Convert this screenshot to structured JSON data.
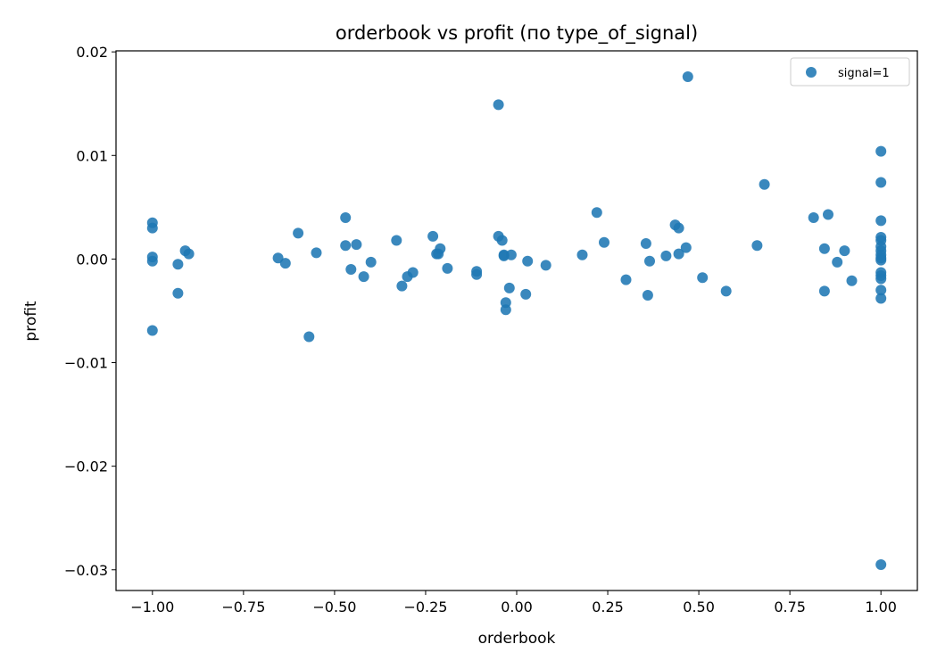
{
  "chart_data": {
    "type": "scatter",
    "title": "orderbook vs profit (по type_of_signal)",
    "xlabel": "orderbook",
    "ylabel": "profit",
    "xlim": [
      -1.1,
      1.1
    ],
    "ylim": [
      -0.032,
      0.0201
    ],
    "x_ticks": [
      -1.0,
      -0.75,
      -0.5,
      -0.25,
      0.0,
      0.25,
      0.5,
      0.75,
      1.0
    ],
    "x_tick_labels": [
      "−1.00",
      "−0.75",
      "−0.50",
      "−0.25",
      "0.00",
      "0.25",
      "0.50",
      "0.75",
      "1.00"
    ],
    "y_ticks": [
      -0.03,
      -0.02,
      -0.01,
      0.0,
      0.01,
      0.02
    ],
    "y_tick_labels": [
      "−0.03",
      "−0.02",
      "−0.01",
      "0.00",
      "0.01",
      "0.02"
    ],
    "grid": false,
    "legend_position": "top-right",
    "color": "#1f77b4",
    "series": [
      {
        "name": "signal=1",
        "points": [
          [
            -1.0,
            0.0035
          ],
          [
            -1.0,
            0.003
          ],
          [
            -1.0,
            0.0002
          ],
          [
            -1.0,
            -0.0002
          ],
          [
            -1.0,
            -0.0069
          ],
          [
            -0.93,
            -0.0005
          ],
          [
            -0.93,
            -0.0033
          ],
          [
            -0.91,
            0.0008
          ],
          [
            -0.9,
            0.0005
          ],
          [
            -0.655,
            0.0001
          ],
          [
            -0.635,
            -0.0004
          ],
          [
            -0.6,
            0.0025
          ],
          [
            -0.57,
            -0.0075
          ],
          [
            -0.55,
            0.0006
          ],
          [
            -0.47,
            0.004
          ],
          [
            -0.47,
            0.0013
          ],
          [
            -0.455,
            -0.001
          ],
          [
            -0.44,
            0.0014
          ],
          [
            -0.42,
            -0.0017
          ],
          [
            -0.4,
            -0.0003
          ],
          [
            -0.33,
            0.0018
          ],
          [
            -0.315,
            -0.0026
          ],
          [
            -0.3,
            -0.0017
          ],
          [
            -0.285,
            -0.0013
          ],
          [
            -0.23,
            0.0022
          ],
          [
            -0.22,
            0.0005
          ],
          [
            -0.215,
            0.0005
          ],
          [
            -0.21,
            0.001
          ],
          [
            -0.19,
            -0.0009
          ],
          [
            -0.11,
            -0.0012
          ],
          [
            -0.11,
            -0.0015
          ],
          [
            -0.05,
            0.0149
          ],
          [
            -0.05,
            0.0022
          ],
          [
            -0.04,
            0.0018
          ],
          [
            -0.035,
            0.0004
          ],
          [
            -0.035,
            0.0003
          ],
          [
            -0.03,
            -0.0042
          ],
          [
            -0.03,
            -0.0049
          ],
          [
            -0.02,
            -0.0028
          ],
          [
            -0.015,
            0.0004
          ],
          [
            0.025,
            -0.0034
          ],
          [
            0.03,
            -0.0002
          ],
          [
            0.08,
            -0.0006
          ],
          [
            0.18,
            0.0004
          ],
          [
            0.22,
            0.0045
          ],
          [
            0.24,
            0.0016
          ],
          [
            0.3,
            -0.002
          ],
          [
            0.355,
            0.0015
          ],
          [
            0.36,
            -0.0035
          ],
          [
            0.365,
            -0.0002
          ],
          [
            0.41,
            0.0003
          ],
          [
            0.435,
            0.0033
          ],
          [
            0.445,
            0.003
          ],
          [
            0.445,
            0.0005
          ],
          [
            0.465,
            0.0011
          ],
          [
            0.47,
            0.0176
          ],
          [
            0.51,
            -0.0018
          ],
          [
            0.575,
            -0.0031
          ],
          [
            0.66,
            0.0013
          ],
          [
            0.68,
            0.0072
          ],
          [
            0.815,
            0.004
          ],
          [
            0.845,
            0.001
          ],
          [
            0.845,
            -0.0031
          ],
          [
            0.855,
            0.0043
          ],
          [
            0.88,
            -0.0003
          ],
          [
            0.9,
            0.0008
          ],
          [
            0.92,
            -0.0021
          ],
          [
            1.0,
            0.0104
          ],
          [
            1.0,
            0.0074
          ],
          [
            1.0,
            0.0037
          ],
          [
            1.0,
            0.0021
          ],
          [
            1.0,
            0.0018
          ],
          [
            1.0,
            0.0012
          ],
          [
            1.0,
            0.0008
          ],
          [
            1.0,
            0.0004
          ],
          [
            1.0,
            0.0001
          ],
          [
            1.0,
            -0.0001
          ],
          [
            1.0,
            -0.0013
          ],
          [
            1.0,
            -0.0016
          ],
          [
            1.0,
            -0.0019
          ],
          [
            1.0,
            -0.003
          ],
          [
            1.0,
            -0.0038
          ],
          [
            1.0,
            -0.0295
          ]
        ]
      }
    ]
  }
}
